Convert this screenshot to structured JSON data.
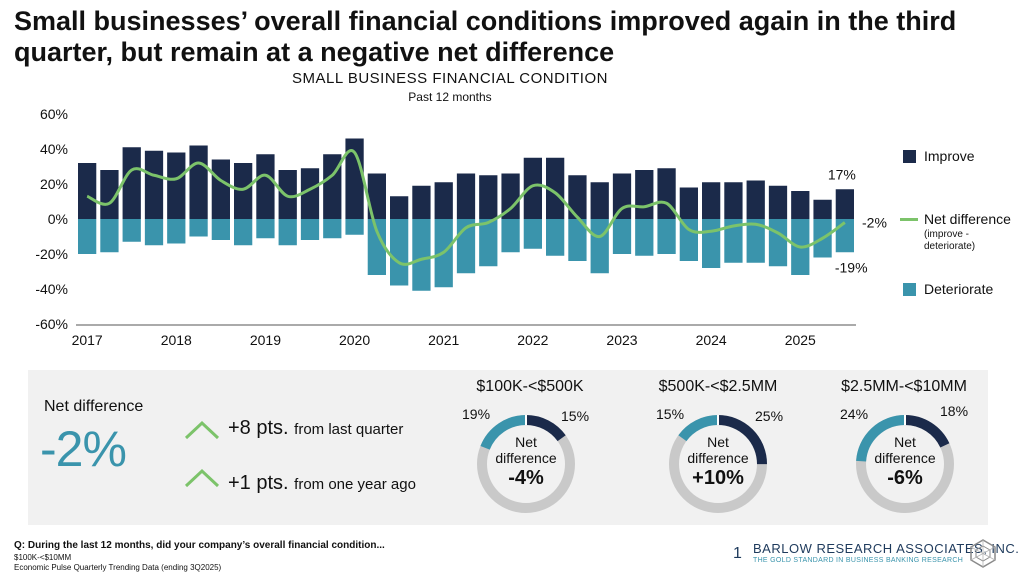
{
  "headline": "Small businesses’ overall financial conditions improved again in the third quarter, but remain at a negative net difference",
  "colors": {
    "improve": "#1b2a4a",
    "deteriorate": "#3a94ac",
    "net": "#7cc36a",
    "panel": "#f1f1f1",
    "donut_gray": "#c9c9c9"
  },
  "chart_data": {
    "type": "bar",
    "title": "SMALL BUSINESS FINANCIAL CONDITION",
    "subtitle": "Past 12 months",
    "ylim": [
      -60,
      60
    ],
    "yticks": [
      "60%",
      "40%",
      "20%",
      "0%",
      "-20%",
      "-40%",
      "-60%"
    ],
    "year_labels": [
      "2017",
      "2018",
      "2019",
      "2020",
      "2021",
      "2022",
      "2023",
      "2024",
      "2025"
    ],
    "series": [
      {
        "name": "Improve",
        "values": [
          32,
          28,
          41,
          39,
          38,
          42,
          34,
          32,
          37,
          28,
          29,
          37,
          46,
          26,
          13,
          19,
          21,
          26,
          25,
          26,
          35,
          35,
          25,
          21,
          26,
          28,
          29,
          18,
          21,
          21,
          22,
          19,
          16,
          11,
          17
        ]
      },
      {
        "name": "Deteriorate",
        "values": [
          -20,
          -19,
          -13,
          -15,
          -14,
          -10,
          -12,
          -15,
          -11,
          -15,
          -12,
          -11,
          -9,
          -32,
          -38,
          -41,
          -39,
          -31,
          -27,
          -19,
          -17,
          -21,
          -24,
          -31,
          -20,
          -21,
          -20,
          -24,
          -28,
          -25,
          -25,
          -27,
          -32,
          -22,
          -19
        ]
      },
      {
        "name": "Net difference",
        "values": [
          13,
          9,
          28,
          25,
          23,
          32,
          22,
          17,
          25,
          13,
          17,
          25,
          38,
          -7,
          -25,
          -23,
          -19,
          -5,
          -2,
          6,
          19,
          15,
          1,
          -10,
          6,
          7,
          9,
          -6,
          -7,
          -4,
          -3,
          -8,
          -16,
          -11,
          -2
        ]
      }
    ],
    "end_labels": {
      "improve": "17%",
      "net": "-2%",
      "deteriorate": "-19%"
    }
  },
  "legend": {
    "improve": "Improve",
    "net": "Net difference",
    "net_note_1": "(improve -",
    "net_note_2": "deteriorate)",
    "deteriorate": "Deteriorate"
  },
  "summary": {
    "label": "Net difference",
    "value": "-2%",
    "change_quarter_pts": "+8 pts.",
    "change_quarter_text": "from last quarter",
    "change_year_pts": "+1 pts.",
    "change_year_text": "from one year ago"
  },
  "donuts": [
    {
      "title": "$100K-<$500K",
      "improve": 15,
      "deteriorate": 19,
      "improve_label": "15%",
      "deteriorate_label": "19%",
      "center_1": "Net",
      "center_2": "difference",
      "net": "-4%"
    },
    {
      "title": "$500K-<$2.5MM",
      "improve": 25,
      "deteriorate": 15,
      "improve_label": "25%",
      "deteriorate_label": "15%",
      "center_1": "Net",
      "center_2": "difference",
      "net": "+10%"
    },
    {
      "title": "$2.5MM-<$10MM",
      "improve": 18,
      "deteriorate": 24,
      "improve_label": "18%",
      "deteriorate_label": "24%",
      "center_1": "Net",
      "center_2": "difference",
      "net": "-6%"
    }
  ],
  "footer": {
    "question": "Q: During the last 12 months, did your company’s overall financial condition...",
    "line2": "$100K-<$10MM",
    "line3": "Economic Pulse Quarterly Trending Data (ending 3Q2025)",
    "page": "1",
    "brand": "BARLOW RESEARCH ASSOCIATES, INC.",
    "tagline": "THE GOLD STANDARD IN BUSINESS BANKING RESEARCH"
  }
}
